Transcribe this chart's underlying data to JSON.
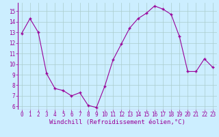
{
  "x": [
    0,
    1,
    2,
    3,
    4,
    5,
    6,
    7,
    8,
    9,
    10,
    11,
    12,
    13,
    14,
    15,
    16,
    17,
    18,
    19,
    20,
    21,
    22,
    23
  ],
  "y": [
    12.9,
    14.3,
    13.0,
    9.1,
    7.7,
    7.5,
    7.0,
    7.3,
    6.1,
    5.9,
    7.9,
    10.4,
    11.9,
    13.4,
    14.3,
    14.8,
    15.5,
    15.2,
    14.7,
    12.6,
    9.3,
    9.3,
    10.5,
    9.7
  ],
  "line_color": "#990099",
  "marker": "+",
  "marker_size": 3,
  "marker_lw": 1.0,
  "line_width": 0.8,
  "bg_color": "#cceeff",
  "grid_color": "#aacccc",
  "xlabel": "Windchill (Refroidissement éolien,°C)",
  "xlabel_color": "#990099",
  "tick_color": "#990099",
  "ylim": [
    5.7,
    15.8
  ],
  "xlim": [
    -0.5,
    23.5
  ],
  "yticks": [
    6,
    7,
    8,
    9,
    10,
    11,
    12,
    13,
    14,
    15
  ],
  "xticks": [
    0,
    1,
    2,
    3,
    4,
    5,
    6,
    7,
    8,
    9,
    10,
    11,
    12,
    13,
    14,
    15,
    16,
    17,
    18,
    19,
    20,
    21,
    22,
    23
  ],
  "xtick_labels": [
    "0",
    "1",
    "2",
    "3",
    "4",
    "5",
    "6",
    "7",
    "8",
    "9",
    "10",
    "11",
    "12",
    "13",
    "14",
    "15",
    "16",
    "17",
    "18",
    "19",
    "20",
    "21",
    "22",
    "23"
  ],
  "tick_fontsize": 5.5,
  "ylabel_fontsize": 6.0,
  "xlabel_fontsize": 6.5
}
